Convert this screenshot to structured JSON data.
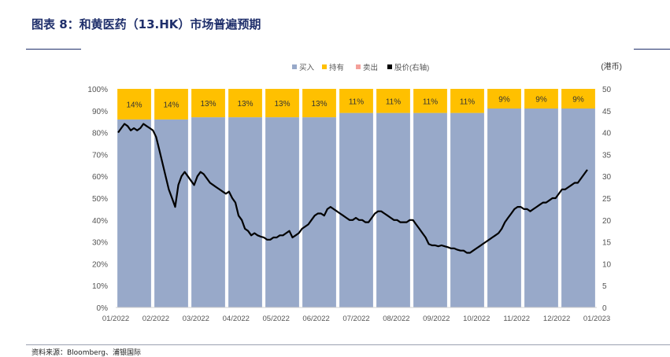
{
  "header": {
    "title": "图表 8：和黄医药（13.HK）市场普遍预期"
  },
  "footer": {
    "source": "资料来源：Bloomberg、浦银国际"
  },
  "colors": {
    "buy": "#98a9c9",
    "hold": "#ffc000",
    "sell": "#f4a09a",
    "price": "#000000",
    "title": "#1f2f6b"
  },
  "chart_data": {
    "type": "bar",
    "stacked": true,
    "categories": [
      "01/2022",
      "02/2022",
      "03/2022",
      "04/2022",
      "05/2022",
      "06/2022",
      "07/2022",
      "08/2022",
      "09/2022",
      "10/2022",
      "11/2022",
      "12/2022",
      "01/2023"
    ],
    "series": [
      {
        "name": "买入",
        "values": [
          86,
          86,
          87,
          87,
          87,
          87,
          89,
          89,
          89,
          89,
          91,
          91,
          91
        ]
      },
      {
        "name": "持有",
        "values": [
          14,
          14,
          13,
          13,
          13,
          13,
          11,
          11,
          11,
          11,
          9,
          9,
          9
        ]
      },
      {
        "name": "卖出",
        "values": [
          0,
          0,
          0,
          0,
          0,
          0,
          0,
          0,
          0,
          0,
          0,
          0,
          0
        ]
      }
    ],
    "data_labels": [
      "14%",
      "14%",
      "13%",
      "13%",
      "13%",
      "13%",
      "11%",
      "11%",
      "11%",
      "11%",
      "9%",
      "9%",
      "9%"
    ],
    "line_series": {
      "name": "股价(右轴)",
      "axis": "right",
      "values": [
        40,
        41,
        42,
        41.5,
        40.5,
        41,
        40.5,
        41,
        42,
        41.5,
        41,
        40.5,
        39,
        36,
        33,
        30,
        27,
        25,
        23,
        28,
        30,
        31,
        30,
        29,
        28,
        30,
        31,
        30.5,
        29.5,
        28.5,
        28,
        27.5,
        27,
        26.5,
        26,
        26.5,
        25,
        24,
        21,
        20,
        18,
        17.5,
        16.5,
        17,
        16.5,
        16.2,
        16,
        15.5,
        15.5,
        16,
        16,
        16.5,
        16.5,
        17,
        17.5,
        16,
        16.5,
        17,
        18,
        18.5,
        19,
        20,
        21,
        21.5,
        21.5,
        21,
        22.5,
        23,
        22.5,
        22,
        21.5,
        21,
        20.5,
        20,
        20,
        20.5,
        20,
        20,
        19.5,
        19.5,
        20.5,
        21.5,
        22,
        22,
        21.5,
        21,
        20.5,
        20,
        20,
        19.5,
        19.5,
        19.5,
        20,
        20,
        19,
        18,
        17,
        16,
        14.5,
        14.2,
        14.2,
        14,
        14.2,
        14,
        13.8,
        13.5,
        13.5,
        13.2,
        13,
        13,
        12.5,
        12.5,
        13,
        13.5,
        14,
        14.5,
        15,
        15.5,
        16,
        16.5,
        17,
        18,
        19.5,
        20.5,
        21.5,
        22.5,
        23,
        23,
        22.5,
        22.5,
        22,
        22.5,
        23,
        23.5,
        24,
        24,
        24.5,
        25,
        25,
        26,
        27,
        27,
        27.5,
        28,
        28.5,
        28.5,
        29.5,
        30.5,
        31.5
      ]
    },
    "y_left": {
      "min": 0,
      "max": 100,
      "ticks": [
        "0%",
        "10%",
        "20%",
        "30%",
        "40%",
        "50%",
        "60%",
        "70%",
        "80%",
        "90%",
        "100%"
      ]
    },
    "y_right": {
      "min": 0,
      "max": 50,
      "ticks": [
        "0",
        "5",
        "10",
        "15",
        "20",
        "25",
        "30",
        "35",
        "40",
        "45",
        "50"
      ],
      "unit": "(港币)"
    },
    "legend": {
      "position": "top",
      "items": [
        "买入",
        "持有",
        "卖出",
        "股价(右轴)"
      ]
    },
    "grid": false
  }
}
